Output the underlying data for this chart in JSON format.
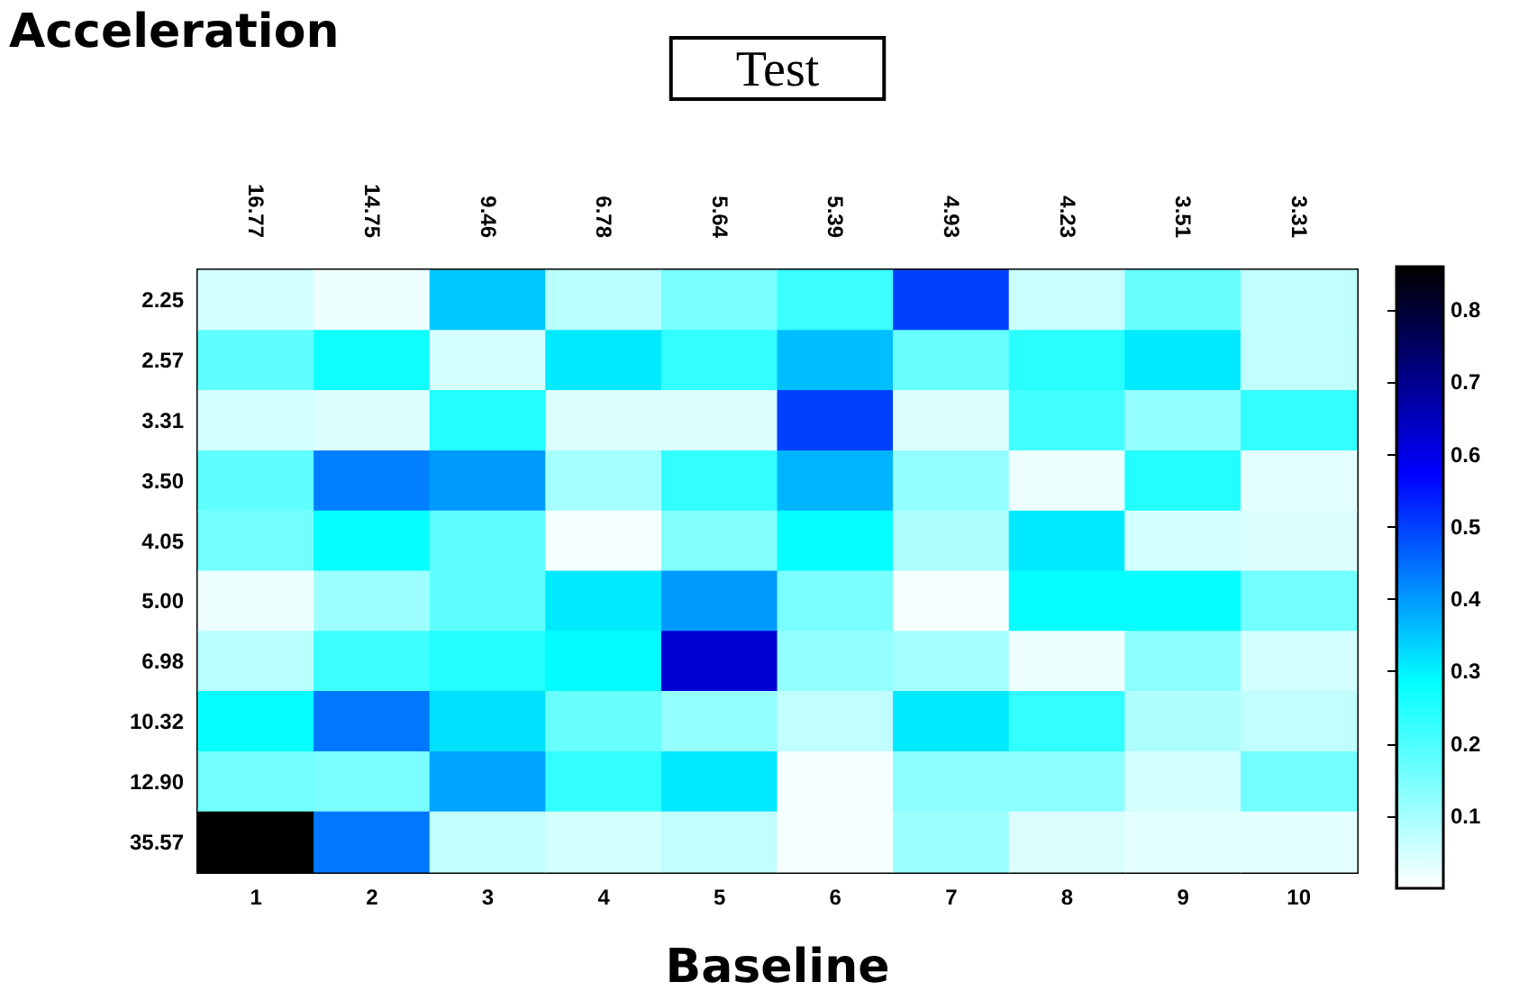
{
  "chart_data": {
    "type": "heatmap",
    "title": "Acceleration",
    "xlabel": "Baseline",
    "x2label": "Test",
    "categories": [
      "1",
      "2",
      "3",
      "4",
      "5",
      "6",
      "7",
      "8",
      "9",
      "10"
    ],
    "y_categories": [
      "2.25",
      "2.57",
      "3.31",
      "3.50",
      "4.05",
      "5.00",
      "6.98",
      "10.32",
      "12.90",
      "35.57"
    ],
    "cells": [
      [
        0.05,
        0.02,
        0.35,
        0.08,
        0.15,
        0.22,
        0.5,
        0.06,
        0.17,
        0.07
      ],
      [
        0.18,
        0.27,
        0.05,
        0.31,
        0.23,
        0.36,
        0.17,
        0.24,
        0.31,
        0.07
      ],
      [
        0.05,
        0.04,
        0.25,
        0.04,
        0.04,
        0.5,
        0.04,
        0.21,
        0.12,
        0.23
      ],
      [
        0.18,
        0.43,
        0.4,
        0.1,
        0.23,
        0.37,
        0.12,
        0.02,
        0.25,
        0.03
      ],
      [
        0.16,
        0.28,
        0.18,
        0.01,
        0.14,
        0.28,
        0.09,
        0.31,
        0.05,
        0.04
      ],
      [
        0.02,
        0.11,
        0.18,
        0.31,
        0.4,
        0.15,
        0.01,
        0.28,
        0.28,
        0.16
      ],
      [
        0.08,
        0.22,
        0.25,
        0.29,
        0.62,
        0.12,
        0.1,
        0.02,
        0.13,
        0.05
      ],
      [
        0.28,
        0.44,
        0.32,
        0.17,
        0.12,
        0.07,
        0.31,
        0.23,
        0.09,
        0.07
      ],
      [
        0.16,
        0.15,
        0.39,
        0.23,
        0.31,
        0.01,
        0.13,
        0.13,
        0.05,
        0.16
      ],
      [
        0.86,
        0.44,
        0.07,
        0.05,
        0.07,
        0.01,
        0.11,
        0.04,
        0.03,
        0.03
      ]
    ],
    "clim": [
      0,
      0.86
    ],
    "cticks": [
      0.1,
      0.2,
      0.3,
      0.4,
      0.5,
      0.6,
      0.7,
      0.8
    ],
    "annotations": [
      "16.77",
      "14.75",
      "9.46",
      "6.78",
      "5.64",
      "5.39",
      "4.93",
      "4.23",
      "3.51",
      "3.31"
    ]
  }
}
